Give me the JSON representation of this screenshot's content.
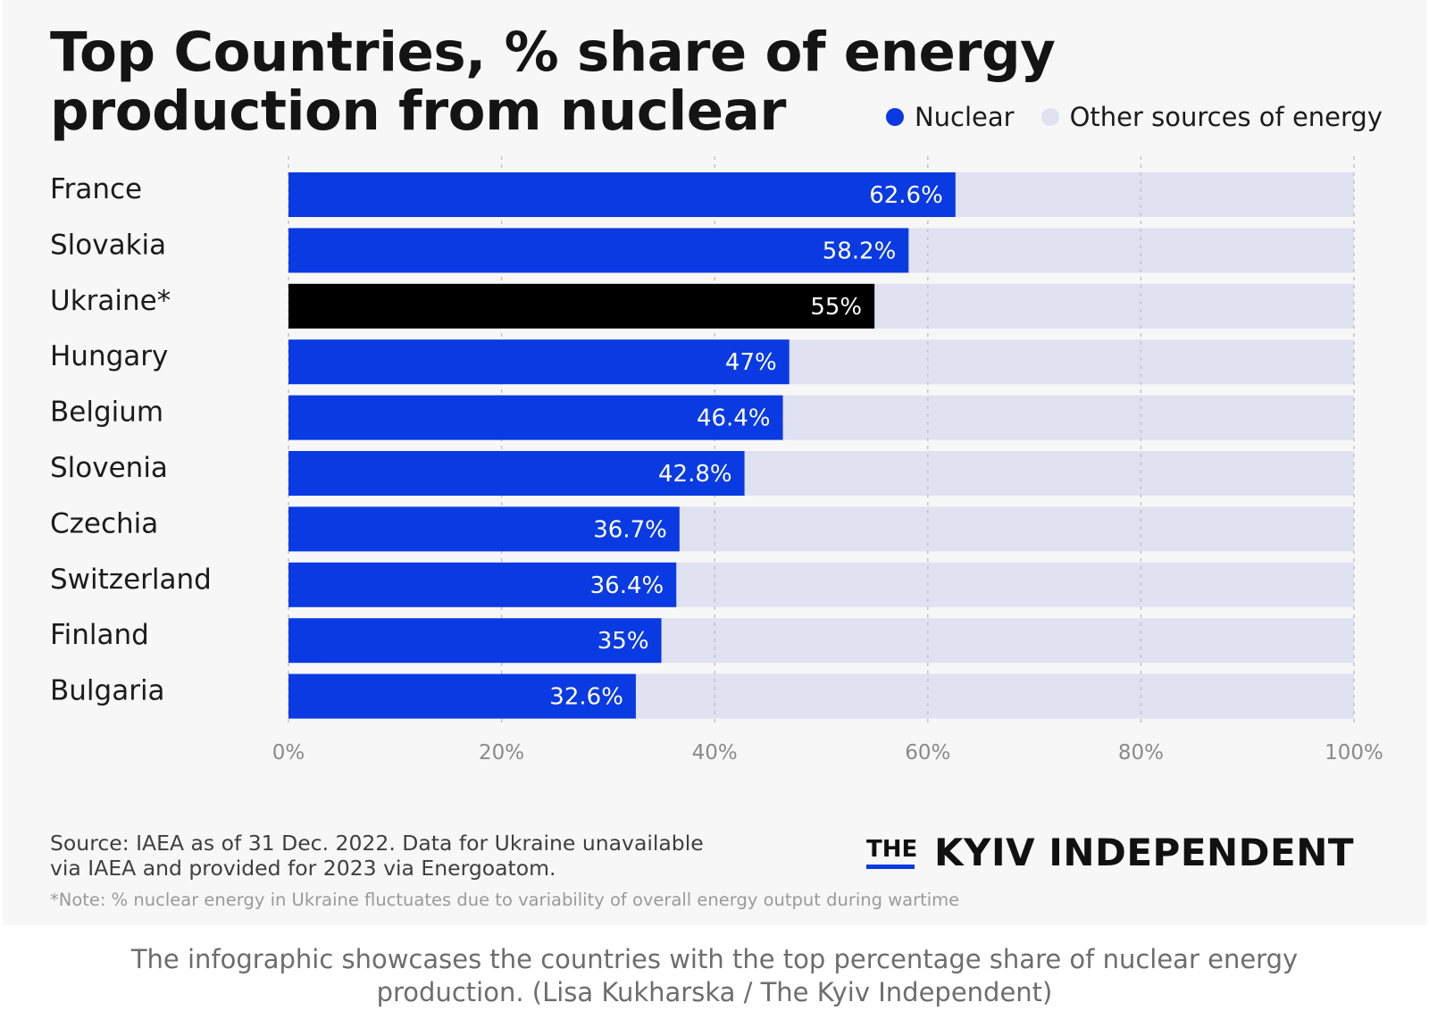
{
  "chart_data": {
    "type": "bar",
    "orientation": "horizontal",
    "stacked": true,
    "title": "Top Countries, % share of energy production from nuclear",
    "categories": [
      "France",
      "Slovakia",
      "Ukraine*",
      "Hungary",
      "Belgium",
      "Slovenia",
      "Czechia",
      "Switzerland",
      "Finland",
      "Bulgaria"
    ],
    "series": [
      {
        "name": "Nuclear",
        "color": "#0a3ae2",
        "values": [
          62.6,
          58.2,
          55,
          47,
          46.4,
          42.8,
          36.7,
          36.4,
          35,
          32.6
        ],
        "labels": [
          "62.6%",
          "58.2%",
          "55%",
          "47%",
          "46.4%",
          "42.8%",
          "36.7%",
          "36.4%",
          "35%",
          "32.6%"
        ]
      },
      {
        "name": "Other sources of energy",
        "color": "#e0e2f1",
        "values": [
          37.4,
          41.8,
          45,
          53,
          53.6,
          57.2,
          63.3,
          63.6,
          65,
          67.4
        ]
      }
    ],
    "highlight": {
      "category": "Ukraine*",
      "color": "#000000"
    },
    "xlim": [
      0,
      100
    ],
    "xticks": [
      "0%",
      "20%",
      "40%",
      "60%",
      "80%",
      "100%"
    ],
    "grid": true,
    "legend": "top-right"
  },
  "legend": {
    "nuclear_label": "Nuclear",
    "other_label": "Other sources of energy"
  },
  "footer": {
    "source_line1": "Source: IAEA as of 31 Dec. 2022. Data for Ukraine unavailable",
    "source_line2": "via IAEA and provided for 2023 via Energoatom.",
    "note": "*Note: % nuclear energy in Ukraine fluctuates due to variability of overall energy output during wartime",
    "logo_the": "THE",
    "logo_main": "KYIV INDEPENDENT"
  },
  "caption": {
    "line1": "The infographic showcases the countries with the top percentage share of nuclear energy",
    "line2": "production. (Lisa Kukharska / The Kyiv Independent)"
  }
}
